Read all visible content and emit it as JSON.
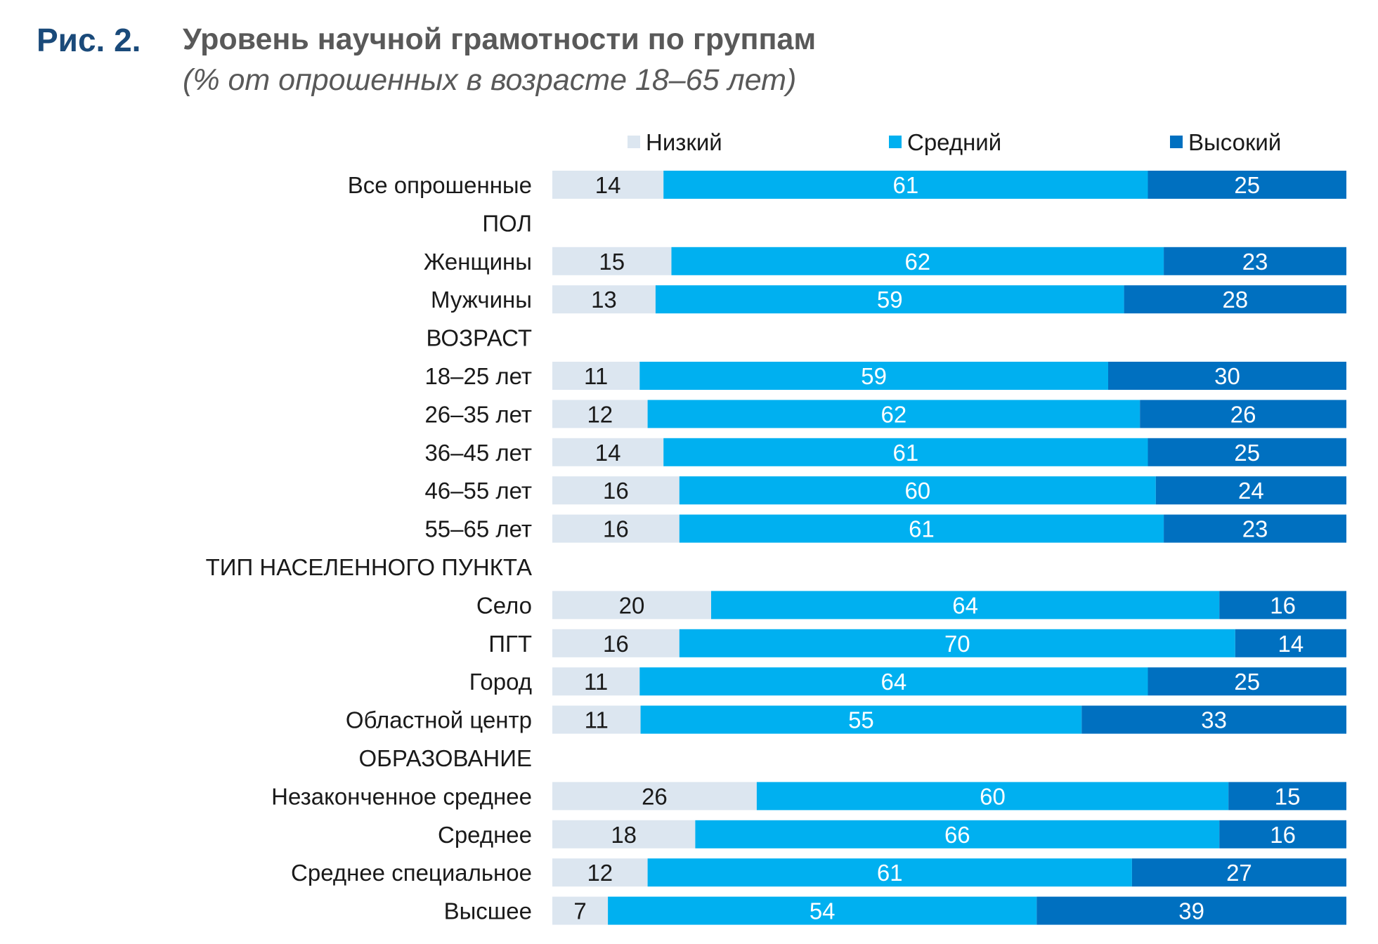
{
  "figure": {
    "label": "Рис. 2.",
    "title": "Уровень научной грамотности по группам",
    "subtitle": "(% от опрошенных в возрасте 18–65 лет)"
  },
  "colors": {
    "low": "#dce6f0",
    "mid": "#00b0f0",
    "high": "#0070c0",
    "text": "#1a1a1a"
  },
  "chart_data": {
    "type": "bar",
    "orientation": "horizontal",
    "stacked": true,
    "normalized": true,
    "xlim": [
      0,
      100
    ],
    "grid": false,
    "legend_position": "top",
    "series": [
      {
        "name": "Низкий",
        "key": "low"
      },
      {
        "name": "Средний",
        "key": "mid"
      },
      {
        "name": "Высокий",
        "key": "high"
      }
    ],
    "rows": [
      {
        "label": "Все опрошенные",
        "header": false,
        "values": [
          14,
          61,
          25
        ]
      },
      {
        "label": "ПОЛ",
        "header": true
      },
      {
        "label": "Женщины",
        "header": false,
        "values": [
          15,
          62,
          23
        ]
      },
      {
        "label": "Мужчины",
        "header": false,
        "values": [
          13,
          59,
          28
        ]
      },
      {
        "label": "ВОЗРАСТ",
        "header": true
      },
      {
        "label": "18–25 лет",
        "header": false,
        "values": [
          11,
          59,
          30
        ]
      },
      {
        "label": "26–35 лет",
        "header": false,
        "values": [
          12,
          62,
          26
        ]
      },
      {
        "label": "36–45 лет",
        "header": false,
        "values": [
          14,
          61,
          25
        ]
      },
      {
        "label": "46–55 лет",
        "header": false,
        "values": [
          16,
          60,
          24
        ]
      },
      {
        "label": "55–65 лет",
        "header": false,
        "values": [
          16,
          61,
          23
        ]
      },
      {
        "label": "ТИП НАСЕЛЕННОГО ПУНКТА",
        "header": true
      },
      {
        "label": "Село",
        "header": false,
        "values": [
          20,
          64,
          16
        ]
      },
      {
        "label": "ПГТ",
        "header": false,
        "values": [
          16,
          70,
          14
        ]
      },
      {
        "label": "Город",
        "header": false,
        "values": [
          11,
          64,
          25
        ]
      },
      {
        "label": "Областной центр",
        "header": false,
        "values": [
          11,
          55,
          33
        ]
      },
      {
        "label": "ОБРАЗОВАНИЕ",
        "header": true
      },
      {
        "label": "Незаконченное среднее",
        "header": false,
        "values": [
          26,
          60,
          15
        ]
      },
      {
        "label": "Среднее",
        "header": false,
        "values": [
          18,
          66,
          16
        ]
      },
      {
        "label": "Среднее специальное",
        "header": false,
        "values": [
          12,
          61,
          27
        ]
      },
      {
        "label": "Высшее",
        "header": false,
        "values": [
          7,
          54,
          39
        ]
      }
    ]
  }
}
